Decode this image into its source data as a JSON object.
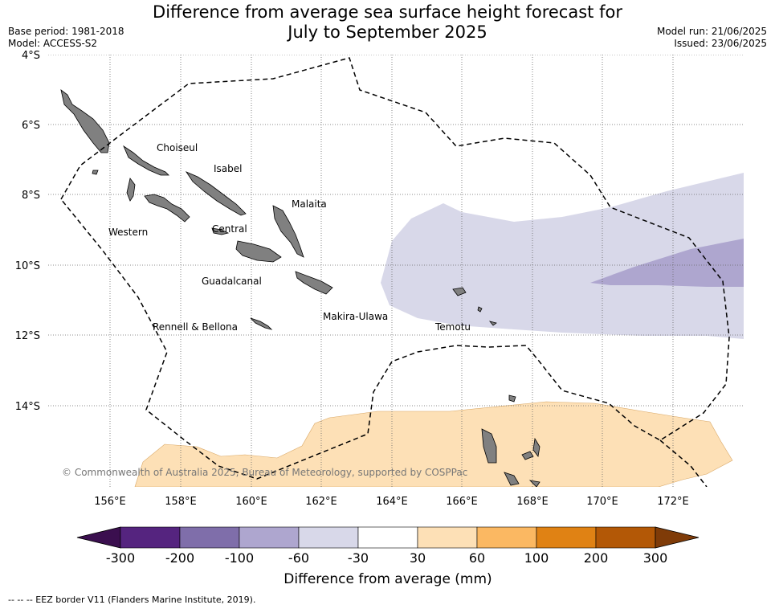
{
  "title_line1": "Difference from average sea surface height forecast for",
  "title_line2": "July to September 2025",
  "base_period": "Base period: 1981-2018",
  "model": "Model: ACCESS-S2",
  "model_run": "Model run: 21/06/2025",
  "issued": "Issued: 23/06/2025",
  "copyright": "© Commonwealth of Australia 2025, Bureau of Meteorology, supported by COSPPac",
  "lat_labels": [
    "4°S",
    "6°S",
    "8°S",
    "10°S",
    "12°S",
    "14°S"
  ],
  "lon_labels": [
    "156°E",
    "158°E",
    "160°E",
    "162°E",
    "164°E",
    "166°E",
    "168°E",
    "170°E",
    "172°E"
  ],
  "region_labels": {
    "choiseul": "Choiseul",
    "isabel": "Isabel",
    "malaita": "Malaita",
    "western": "Western",
    "central": "Central",
    "guadalcanal": "Guadalcanal",
    "makira": "Makira-Ulawa",
    "rennell": "Rennell & Bellona",
    "temotu": "Temotu"
  },
  "colorbar": {
    "title": "Difference from average (mm)",
    "ticks": [
      "-300",
      "-200",
      "-100",
      "-60",
      "-30",
      "30",
      "60",
      "100",
      "200",
      "300"
    ],
    "colors": [
      "#3b0f4f",
      "#55247f",
      "#7f6eaa",
      "#aea6cf",
      "#d8d8e9",
      "#ffffff",
      "#fde0b6",
      "#fbb862",
      "#e08214",
      "#b35806",
      "#7f3b08"
    ]
  },
  "anomaly_colors": {
    "light_purple": "#d8d8e9",
    "mid_purple": "#aea6cf",
    "light_orange": "#fde0b6"
  },
  "footer": "--  --  -- EEZ border V11 (Flanders Marine Institute, 2019)."
}
